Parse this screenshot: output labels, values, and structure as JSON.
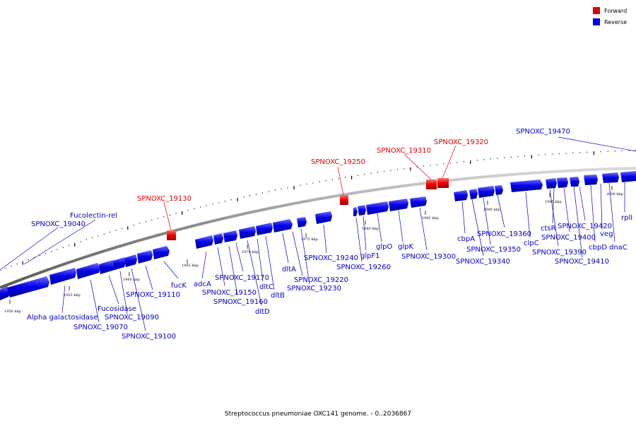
{
  "legend": [
    {
      "label": "Forward",
      "color": "#e00000"
    },
    {
      "label": "Reverse",
      "color": "#0000e0"
    }
  ],
  "caption": "Streptococcus pneumoniae OXC141 genome. - 0..2036867",
  "colors": {
    "forward": "#e00000",
    "reverse": "#0000e0",
    "backbone": "#888888"
  },
  "ticks": [
    "1950 kbp",
    "1955 kbp",
    "1960 kbp",
    "1965 kbp",
    "1970 kbp",
    "1975 kbp",
    "1980 kbp",
    "1985 kbp",
    "1990 kbp",
    "1995 kbp",
    "2000 kbp"
  ],
  "forward_labels": [
    "SPNOXC_19130",
    "SPNOXC_19250",
    "SPNOXC_19310",
    "SPNOXC_19320"
  ],
  "reverse_labels": [
    "Fucolectin-rel",
    "SPNOXC_19040",
    "Alpha galactosidase",
    "SPNOXC_19070",
    "Fucosidase",
    "SPNOXC_19090",
    "SPNOXC_19100",
    "SPNOXC_19110",
    "fucK",
    "adcA",
    "SPNOXC_19150",
    "SPNOXC_19160",
    "SPNOXC_19170",
    "dltD",
    "dltC",
    "dltB",
    "dltA",
    "SPNOXC_19220",
    "SPNOXC_19230",
    "SPNOXC_19240",
    "SPNOXC_19260",
    "glpF1",
    "glpO",
    "glpK",
    "SPNOXC_19300",
    "cbpA",
    "SPNOXC_19340",
    "SPNOXC_19350",
    "SPNOXC_19360",
    "clpC",
    "SPNOXC_19390",
    "ctsR",
    "SPNOXC_19400",
    "SPNOXC_19410",
    "SPNOXC_19420",
    "cbpD",
    "veg",
    "dnaC",
    "rplI",
    "SPNOXC_19470"
  ]
}
